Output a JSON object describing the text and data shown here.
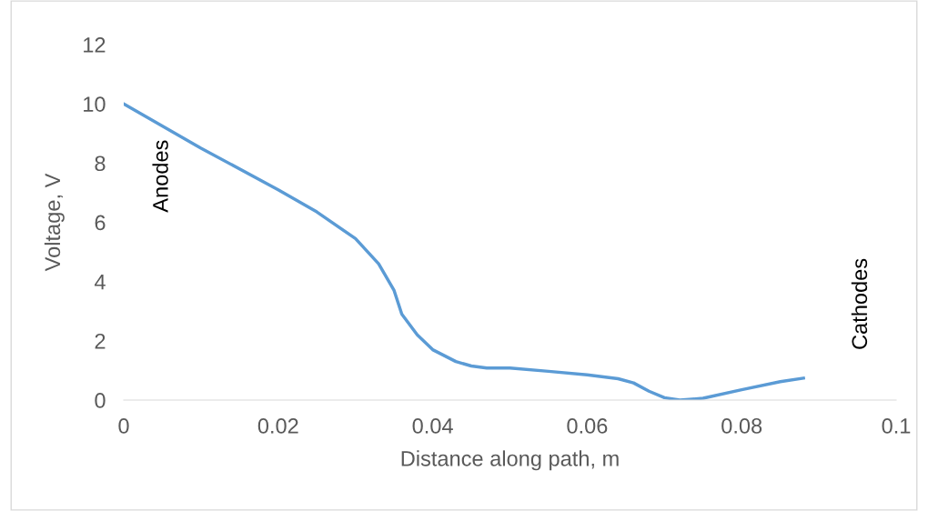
{
  "chart_data": {
    "type": "line",
    "xlabel": "Distance along path, m",
    "ylabel": "Voltage, V",
    "x": [
      0,
      0.01,
      0.02,
      0.025,
      0.03,
      0.033,
      0.035,
      0.036,
      0.038,
      0.04,
      0.043,
      0.045,
      0.047,
      0.05,
      0.055,
      0.06,
      0.064,
      0.066,
      0.068,
      0.07,
      0.072,
      0.075,
      0.08,
      0.085,
      0.088
    ],
    "series": [
      {
        "color": "#5b9bd5",
        "values": [
          10,
          8.5,
          7.1,
          6.35,
          5.45,
          4.6,
          3.7,
          2.9,
          2.2,
          1.7,
          1.3,
          1.15,
          1.08,
          1.08,
          0.97,
          0.85,
          0.72,
          0.58,
          0.3,
          0.08,
          0,
          0.06,
          0.35,
          0.62,
          0.74
        ]
      }
    ],
    "xlim": [
      0,
      0.1
    ],
    "xticks": [
      0,
      0.02,
      0.04,
      0.06,
      0.08,
      0.1
    ],
    "ylim": [
      0,
      12
    ],
    "yticks": [
      0,
      2,
      4,
      6,
      8,
      10,
      12
    ],
    "annotations": [
      "Anodes",
      "Cathodes"
    ],
    "grid": false,
    "legend": false,
    "marker": "none",
    "line_style": "solid"
  }
}
